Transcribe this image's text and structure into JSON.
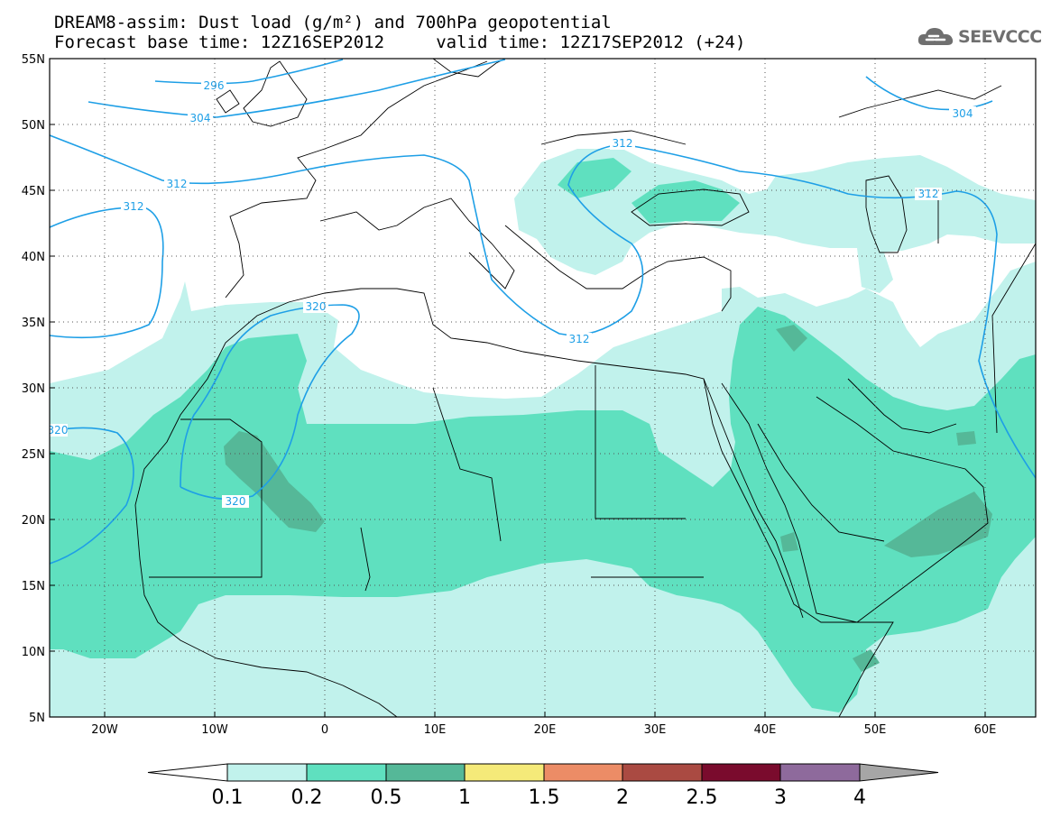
{
  "title": {
    "line1": "DREAM8-assim: Dust load (g/m²) and 700hPa geopotential",
    "line2": "Forecast base time: 12Z16SEP2012     valid time: 12Z17SEP2012 (+24)"
  },
  "logo": {
    "icon": "cloud-icon",
    "text": "SEEVCCC"
  },
  "axes": {
    "lat_labels": [
      "55N",
      "50N",
      "45N",
      "40N",
      "35N",
      "30N",
      "25N",
      "20N",
      "15N",
      "10N",
      "5N"
    ],
    "lon_labels": [
      "20W",
      "10W",
      "0",
      "10E",
      "20E",
      "30E",
      "40E",
      "50E",
      "60E"
    ]
  },
  "contour_labels": [
    "296",
    "304",
    "304",
    "312",
    "312",
    "312",
    "312",
    "312",
    "320",
    "320",
    "320"
  ],
  "colorbar": {
    "ticks": [
      "0.1",
      "0.2",
      "0.5",
      "1",
      "1.5",
      "2",
      "2.5",
      "3",
      "4"
    ],
    "colors": [
      "#ffffff",
      "#c1f2ec",
      "#5fe0bf",
      "#55b898",
      "#f5ea79",
      "#ec8c66",
      "#aa4a42",
      "#7a0b2d",
      "#8e6a9c",
      "#a6a6a6"
    ]
  },
  "map_colors": {
    "light": "#c1f2ec",
    "medium": "#5fe0bf",
    "dark": "#55b898",
    "contour": "#1e9fe6"
  }
}
